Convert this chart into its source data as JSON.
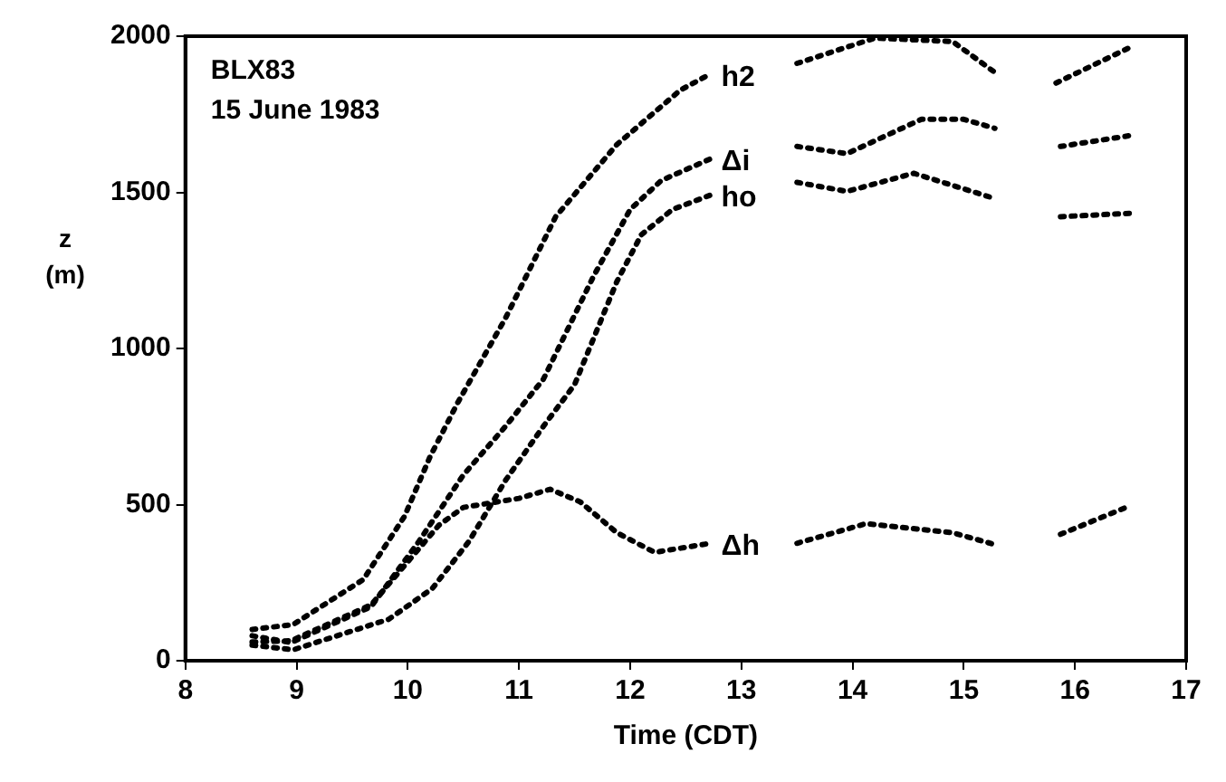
{
  "chart_data": {
    "type": "line",
    "xlabel": "Time (CDT)",
    "ylabel": "z (m)",
    "annotations": [
      "BLX83",
      "15 June 1983"
    ],
    "xlim": [
      8,
      17
    ],
    "xticks": [
      8,
      9,
      10,
      11,
      12,
      13,
      14,
      15,
      16,
      17
    ],
    "ylim": [
      0,
      2000
    ],
    "yticks": [
      0,
      500,
      1000,
      1500,
      2000
    ],
    "grid": false,
    "legend": false,
    "marker": "none",
    "line_style": "dotted",
    "series": [
      {
        "name": "h2",
        "color": "#000000",
        "x": [
          8.6,
          8.97,
          9.6,
          9.97,
          10.2,
          10.45,
          10.88,
          11.33,
          11.88,
          12.45,
          12.72,
          13.1,
          13.5,
          14.2,
          14.9,
          15.28,
          15.6,
          15.83,
          16.5
        ],
        "values": [
          100,
          116,
          260,
          462,
          653,
          827,
          1098,
          1422,
          1653,
          1827,
          1879,
          null,
          1913,
          1994,
          1983,
          1884,
          null,
          1850,
          1965
        ]
      },
      {
        "name": "Δi",
        "color": "#000000",
        "x": [
          8.6,
          8.95,
          9.67,
          10.1,
          10.5,
          10.88,
          11.22,
          11.67,
          12,
          12.28,
          12.72,
          13.1,
          13.5,
          13.95,
          14.62,
          15,
          15.28,
          15.6,
          15.87,
          16.5
        ],
        "values": [
          80,
          58,
          173,
          382,
          595,
          751,
          902,
          1231,
          1445,
          1538,
          1607,
          null,
          1647,
          1624,
          1734,
          1734,
          1705,
          null,
          1647,
          1682
        ]
      },
      {
        "name": "ho",
        "color": "#000000",
        "x": [
          8.6,
          8.97,
          9.83,
          10.22,
          10.55,
          10.88,
          11.22,
          11.5,
          11.88,
          12.1,
          12.38,
          12.72,
          13.1,
          13.5,
          13.95,
          14.55,
          15.28,
          15.6,
          15.87,
          16.5
        ],
        "values": [
          50,
          35,
          133,
          231,
          382,
          578,
          751,
          884,
          1214,
          1364,
          1445,
          1491,
          null,
          1532,
          1503,
          1561,
          1480,
          null,
          1422,
          1433
        ]
      },
      {
        "name": "Δh",
        "color": "#000000",
        "x": [
          8.6,
          8.95,
          9.67,
          10.28,
          10.5,
          11,
          11.28,
          11.55,
          11.88,
          12.22,
          12.72,
          13.1,
          13.5,
          14.12,
          14.9,
          15.3,
          15.6,
          15.87,
          16.5
        ],
        "values": [
          60,
          64,
          179,
          434,
          491,
          520,
          549,
          509,
          410,
          347,
          376,
          null,
          376,
          439,
          410,
          370,
          null,
          405,
          497
        ]
      }
    ]
  }
}
